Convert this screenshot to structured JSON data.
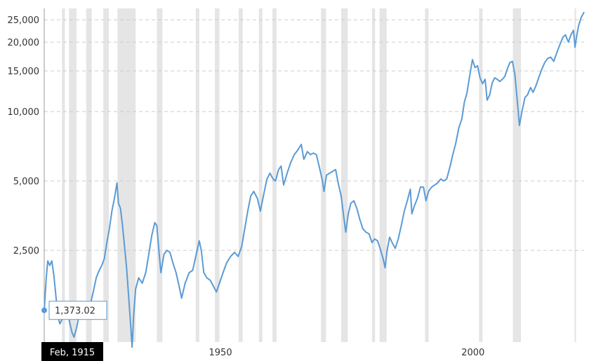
{
  "chart_data": {
    "type": "line",
    "y_scale": "log",
    "ylim": [
      1000,
      28000
    ],
    "xlim": [
      1915.1,
      2022.0
    ],
    "y_ticks": [
      {
        "value": 2500,
        "label": "2,500"
      },
      {
        "value": 5000,
        "label": "5,000"
      },
      {
        "value": 10000,
        "label": "10,000"
      },
      {
        "value": 15000,
        "label": "15,000"
      },
      {
        "value": 20000,
        "label": "20,000"
      },
      {
        "value": 25000,
        "label": "25,000"
      }
    ],
    "x_ticks": [
      {
        "value": 1950,
        "label": "1950"
      },
      {
        "value": 2000,
        "label": "2000"
      }
    ],
    "grid": "horizontal dashed",
    "colors": {
      "line": "#5b9bd5",
      "recession": "#e5e5e5",
      "gridline": "#cccccc",
      "axis": "#999999",
      "cursor_label_bg": "#000000"
    },
    "recessions": [
      [
        1918.6,
        1919.2
      ],
      [
        1920.0,
        1921.5
      ],
      [
        1923.4,
        1924.5
      ],
      [
        1926.8,
        1927.9
      ],
      [
        1929.6,
        1933.2
      ],
      [
        1937.4,
        1938.5
      ],
      [
        1945.1,
        1945.8
      ],
      [
        1948.9,
        1949.8
      ],
      [
        1953.6,
        1954.4
      ],
      [
        1957.6,
        1958.3
      ],
      [
        1960.3,
        1961.1
      ],
      [
        1969.9,
        1970.9
      ],
      [
        1973.9,
        1975.2
      ],
      [
        1980.0,
        1980.6
      ],
      [
        1981.5,
        1982.9
      ],
      [
        1990.5,
        1991.2
      ],
      [
        2001.2,
        2001.9
      ],
      [
        2007.9,
        2009.5
      ],
      [
        2020.1,
        2020.4
      ]
    ],
    "series": [
      {
        "values": [
          [
            1915.1,
            1373
          ],
          [
            1915.5,
            1900
          ],
          [
            1915.8,
            2250
          ],
          [
            1916.2,
            2150
          ],
          [
            1916.6,
            2250
          ],
          [
            1917.0,
            1950
          ],
          [
            1917.4,
            1600
          ],
          [
            1917.8,
            1300
          ],
          [
            1918.2,
            1200
          ],
          [
            1918.6,
            1250
          ],
          [
            1919.0,
            1400
          ],
          [
            1919.3,
            1300
          ],
          [
            1919.7,
            1350
          ],
          [
            1920.2,
            1200
          ],
          [
            1920.6,
            1100
          ],
          [
            1921.0,
            1050
          ],
          [
            1921.5,
            1150
          ],
          [
            1922.0,
            1300
          ],
          [
            1922.5,
            1400
          ],
          [
            1923.0,
            1450
          ],
          [
            1923.6,
            1350
          ],
          [
            1924.2,
            1450
          ],
          [
            1924.8,
            1650
          ],
          [
            1925.4,
            1900
          ],
          [
            1926.0,
            2050
          ],
          [
            1926.5,
            2150
          ],
          [
            1927.0,
            2300
          ],
          [
            1927.5,
            2700
          ],
          [
            1928.0,
            3100
          ],
          [
            1928.5,
            3700
          ],
          [
            1929.0,
            4200
          ],
          [
            1929.5,
            4900
          ],
          [
            1929.8,
            4000
          ],
          [
            1930.2,
            3800
          ],
          [
            1930.6,
            3200
          ],
          [
            1931.0,
            2600
          ],
          [
            1931.4,
            2100
          ],
          [
            1931.8,
            1600
          ],
          [
            1932.2,
            1200
          ],
          [
            1932.5,
            950
          ],
          [
            1932.8,
            1300
          ],
          [
            1933.2,
            1700
          ],
          [
            1933.8,
            1900
          ],
          [
            1934.5,
            1800
          ],
          [
            1935.2,
            2000
          ],
          [
            1935.8,
            2400
          ],
          [
            1936.4,
            2900
          ],
          [
            1937.0,
            3300
          ],
          [
            1937.4,
            3200
          ],
          [
            1937.8,
            2500
          ],
          [
            1938.2,
            2000
          ],
          [
            1938.8,
            2400
          ],
          [
            1939.4,
            2500
          ],
          [
            1940.0,
            2450
          ],
          [
            1940.6,
            2200
          ],
          [
            1941.2,
            2000
          ],
          [
            1941.8,
            1750
          ],
          [
            1942.3,
            1550
          ],
          [
            1943.0,
            1800
          ],
          [
            1943.8,
            2000
          ],
          [
            1944.5,
            2050
          ],
          [
            1945.2,
            2400
          ],
          [
            1945.8,
            2750
          ],
          [
            1946.2,
            2500
          ],
          [
            1946.7,
            2000
          ],
          [
            1947.3,
            1900
          ],
          [
            1948.0,
            1850
          ],
          [
            1948.6,
            1750
          ],
          [
            1949.2,
            1650
          ],
          [
            1949.8,
            1800
          ],
          [
            1950.5,
            2000
          ],
          [
            1951.2,
            2200
          ],
          [
            1952.0,
            2350
          ],
          [
            1952.8,
            2450
          ],
          [
            1953.5,
            2350
          ],
          [
            1954.2,
            2600
          ],
          [
            1954.8,
            3100
          ],
          [
            1955.4,
            3700
          ],
          [
            1956.0,
            4300
          ],
          [
            1956.6,
            4500
          ],
          [
            1957.3,
            4200
          ],
          [
            1957.9,
            3700
          ],
          [
            1958.5,
            4300
          ],
          [
            1959.2,
            5100
          ],
          [
            1959.8,
            5400
          ],
          [
            1960.4,
            5100
          ],
          [
            1960.9,
            5000
          ],
          [
            1961.5,
            5600
          ],
          [
            1962.0,
            5800
          ],
          [
            1962.5,
            4800
          ],
          [
            1963.2,
            5400
          ],
          [
            1963.9,
            6000
          ],
          [
            1964.6,
            6500
          ],
          [
            1965.3,
            6800
          ],
          [
            1966.0,
            7200
          ],
          [
            1966.5,
            6200
          ],
          [
            1967.2,
            6700
          ],
          [
            1967.8,
            6500
          ],
          [
            1968.4,
            6600
          ],
          [
            1969.0,
            6500
          ],
          [
            1969.6,
            5700
          ],
          [
            1970.2,
            5000
          ],
          [
            1970.5,
            4500
          ],
          [
            1971.0,
            5300
          ],
          [
            1971.6,
            5400
          ],
          [
            1972.2,
            5500
          ],
          [
            1972.8,
            5600
          ],
          [
            1973.3,
            4900
          ],
          [
            1973.9,
            4300
          ],
          [
            1974.4,
            3500
          ],
          [
            1974.8,
            3000
          ],
          [
            1975.3,
            3600
          ],
          [
            1975.8,
            4000
          ],
          [
            1976.4,
            4100
          ],
          [
            1977.0,
            3800
          ],
          [
            1977.6,
            3400
          ],
          [
            1978.2,
            3100
          ],
          [
            1978.8,
            3000
          ],
          [
            1979.4,
            2950
          ],
          [
            1980.0,
            2700
          ],
          [
            1980.5,
            2800
          ],
          [
            1981.1,
            2750
          ],
          [
            1981.6,
            2550
          ],
          [
            1982.2,
            2300
          ],
          [
            1982.6,
            2100
          ],
          [
            1983.0,
            2500
          ],
          [
            1983.5,
            2850
          ],
          [
            1984.0,
            2700
          ],
          [
            1984.6,
            2550
          ],
          [
            1985.2,
            2800
          ],
          [
            1985.8,
            3200
          ],
          [
            1986.4,
            3700
          ],
          [
            1987.0,
            4100
          ],
          [
            1987.6,
            4600
          ],
          [
            1987.9,
            3600
          ],
          [
            1988.4,
            3900
          ],
          [
            1989.0,
            4200
          ],
          [
            1989.6,
            4700
          ],
          [
            1990.2,
            4700
          ],
          [
            1990.7,
            4100
          ],
          [
            1991.2,
            4500
          ],
          [
            1991.8,
            4700
          ],
          [
            1992.4,
            4800
          ],
          [
            1993.0,
            4900
          ],
          [
            1993.6,
            5100
          ],
          [
            1994.2,
            5000
          ],
          [
            1994.8,
            5100
          ],
          [
            1995.4,
            5700
          ],
          [
            1996.0,
            6500
          ],
          [
            1996.6,
            7300
          ],
          [
            1997.2,
            8500
          ],
          [
            1997.8,
            9300
          ],
          [
            1998.3,
            11000
          ],
          [
            1998.8,
            12000
          ],
          [
            1999.4,
            14500
          ],
          [
            1999.9,
            16800
          ],
          [
            2000.4,
            15500
          ],
          [
            2000.9,
            15800
          ],
          [
            2001.4,
            14000
          ],
          [
            2001.9,
            13200
          ],
          [
            2002.4,
            13800
          ],
          [
            2002.8,
            11200
          ],
          [
            2003.3,
            11800
          ],
          [
            2003.8,
            13300
          ],
          [
            2004.3,
            14000
          ],
          [
            2004.8,
            13800
          ],
          [
            2005.3,
            13500
          ],
          [
            2005.8,
            13800
          ],
          [
            2006.3,
            14200
          ],
          [
            2006.8,
            15300
          ],
          [
            2007.3,
            16300
          ],
          [
            2007.8,
            16500
          ],
          [
            2008.3,
            14500
          ],
          [
            2008.8,
            11000
          ],
          [
            2009.2,
            8700
          ],
          [
            2009.7,
            10000
          ],
          [
            2010.3,
            11500
          ],
          [
            2010.8,
            11800
          ],
          [
            2011.4,
            12700
          ],
          [
            2011.9,
            12100
          ],
          [
            2012.5,
            13000
          ],
          [
            2013.0,
            14000
          ],
          [
            2013.6,
            15200
          ],
          [
            2014.2,
            16300
          ],
          [
            2014.8,
            17000
          ],
          [
            2015.4,
            17200
          ],
          [
            2016.0,
            16500
          ],
          [
            2016.6,
            18000
          ],
          [
            2017.2,
            19500
          ],
          [
            2017.8,
            21000
          ],
          [
            2018.3,
            21500
          ],
          [
            2018.9,
            20000
          ],
          [
            2019.4,
            21500
          ],
          [
            2019.9,
            22500
          ],
          [
            2020.2,
            19000
          ],
          [
            2020.5,
            21000
          ],
          [
            2020.9,
            23500
          ],
          [
            2021.4,
            25500
          ],
          [
            2022.0,
            27000
          ]
        ]
      }
    ]
  },
  "tooltip": {
    "value": "1,373.02",
    "date": "Feb, 1915"
  }
}
